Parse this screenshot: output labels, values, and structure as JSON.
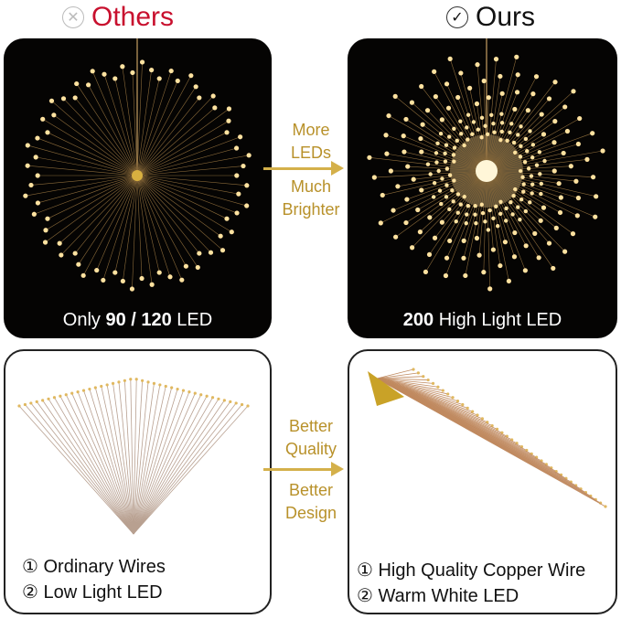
{
  "header": {
    "others_icon": "circle-x-icon",
    "others_label": "Others",
    "ours_icon": "circle-check-icon",
    "ours_label": "Ours",
    "others_color": "#c8102e"
  },
  "top_left": {
    "caption_pre": "Only ",
    "caption_bold": "90 / 120",
    "caption_post": " LED"
  },
  "top_right": {
    "caption_bold": "200",
    "caption_post": " High Light LED"
  },
  "middle_top": {
    "line1": "More",
    "line2": "LEDs",
    "line3": "Much",
    "line4": "Brighter"
  },
  "middle_bottom": {
    "line1": "Better",
    "line2": "Quality",
    "line3": "Better",
    "line4": "Design"
  },
  "bottom_left": {
    "items": [
      "① Ordinary Wires",
      "② Low Light LED"
    ]
  },
  "bottom_right": {
    "items": [
      "① High Quality Copper Wire",
      "② Warm White LED"
    ]
  },
  "accent_color": "#d4b04a"
}
